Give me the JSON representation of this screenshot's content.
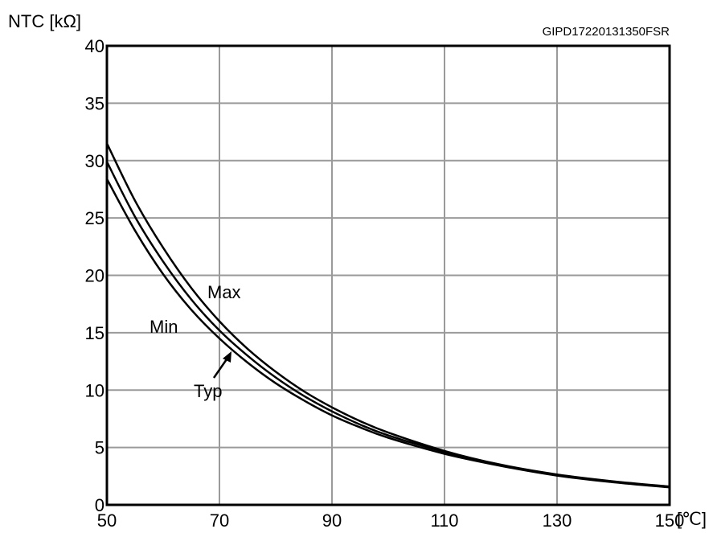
{
  "chart_data": {
    "type": "line",
    "ylabel": "NTC [kΩ]",
    "xunit": "[℃]",
    "doc_code": "GIPD17220131350FSR",
    "xlim": [
      50,
      150
    ],
    "ylim": [
      0,
      40
    ],
    "xticks": [
      50,
      70,
      90,
      110,
      130,
      150
    ],
    "yticks": [
      0,
      5,
      10,
      15,
      20,
      25,
      30,
      35,
      40
    ],
    "grid": true,
    "series": [
      {
        "name": "Max",
        "x": [
          50,
          55,
          60,
          65,
          70,
          75,
          80,
          85,
          90,
          95,
          100,
          110,
          120,
          130,
          140,
          150
        ],
        "y": [
          31.5,
          26.5,
          22.4,
          18.9,
          16.0,
          13.6,
          11.6,
          9.9,
          8.5,
          7.3,
          6.3,
          4.7,
          3.5,
          2.65,
          2.05,
          1.6
        ]
      },
      {
        "name": "Typ",
        "x": [
          50,
          55,
          60,
          65,
          70,
          75,
          80,
          85,
          90,
          95,
          100,
          110,
          120,
          130,
          140,
          150
        ],
        "y": [
          29.9,
          25.1,
          21.2,
          17.9,
          15.2,
          13.0,
          11.1,
          9.5,
          8.15,
          7.0,
          6.05,
          4.6,
          3.45,
          2.6,
          2.0,
          1.55
        ]
      },
      {
        "name": "Min",
        "x": [
          50,
          55,
          60,
          65,
          70,
          75,
          80,
          85,
          90,
          95,
          100,
          110,
          120,
          130,
          140,
          150
        ],
        "y": [
          28.4,
          23.9,
          20.1,
          17.0,
          14.5,
          12.4,
          10.6,
          9.1,
          7.8,
          6.75,
          5.85,
          4.45,
          3.4,
          2.55,
          1.97,
          1.52
        ]
      }
    ],
    "annotations": [
      {
        "text": "Max"
      },
      {
        "text": "Min"
      },
      {
        "text": "Typ"
      }
    ]
  }
}
